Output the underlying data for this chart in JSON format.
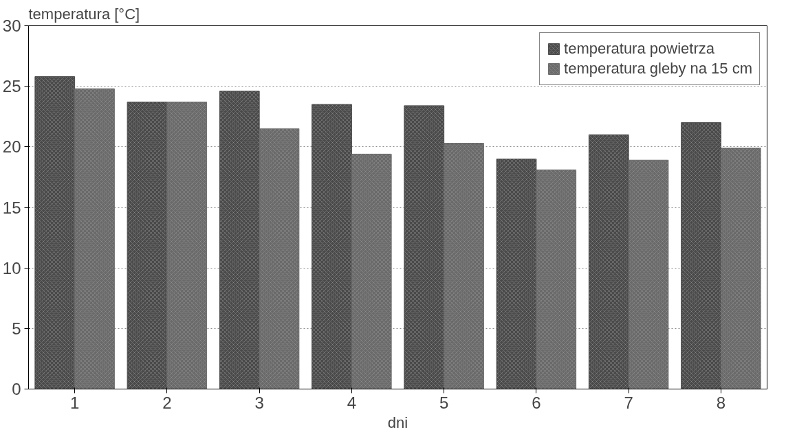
{
  "chart_data": {
    "type": "bar",
    "ylabel": "temperatura [°C]",
    "xlabel": "dni",
    "categories": [
      "1",
      "2",
      "3",
      "4",
      "5",
      "6",
      "7",
      "8"
    ],
    "series": [
      {
        "name": "temperatura powietrza",
        "color": "#4a4a4a",
        "values": [
          25.8,
          23.7,
          24.6,
          23.5,
          23.4,
          19.0,
          21.0,
          22.0
        ]
      },
      {
        "name": "temperatura gleby na 15 cm",
        "color": "#6a6a6a",
        "values": [
          24.8,
          23.7,
          21.5,
          19.4,
          20.3,
          18.1,
          18.9,
          19.9
        ]
      }
    ],
    "ylim": [
      0,
      30
    ],
    "yticks": [
      0,
      5,
      10,
      15,
      20,
      25,
      30
    ],
    "grid": "y",
    "legend": "top right"
  }
}
